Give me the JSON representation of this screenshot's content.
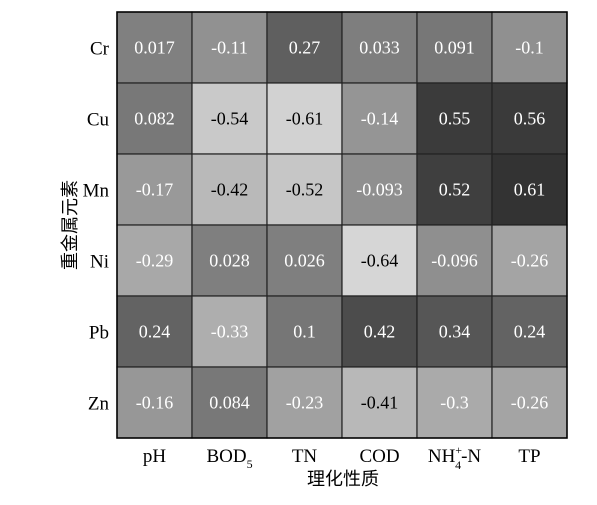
{
  "chart_data": {
    "type": "heatmap",
    "xlabel": "理化性质",
    "ylabel": "重金属元素",
    "x_categories": [
      {
        "main": "pH",
        "sub": "",
        "sup": "",
        "tail": ""
      },
      {
        "main": "BOD",
        "sub": "5",
        "sup": "",
        "tail": ""
      },
      {
        "main": "TN",
        "sub": "",
        "sup": "",
        "tail": ""
      },
      {
        "main": "COD",
        "sub": "",
        "sup": "",
        "tail": ""
      },
      {
        "main": "NH",
        "sub": "4",
        "sup": "+",
        "tail": "-N"
      },
      {
        "main": "TP",
        "sub": "",
        "sup": "",
        "tail": ""
      }
    ],
    "y_categories": [
      "Cr",
      "Cu",
      "Mn",
      "Ni",
      "Pb",
      "Zn"
    ],
    "values": [
      [
        0.017,
        -0.11,
        0.27,
        0.033,
        0.091,
        -0.1
      ],
      [
        0.082,
        -0.54,
        -0.61,
        -0.14,
        0.55,
        0.56
      ],
      [
        -0.17,
        -0.42,
        -0.52,
        -0.093,
        0.52,
        0.61
      ],
      [
        -0.29,
        0.028,
        0.026,
        -0.64,
        -0.096,
        -0.26
      ],
      [
        0.24,
        -0.33,
        0.1,
        0.42,
        0.34,
        0.24
      ],
      [
        -0.16,
        0.084,
        -0.23,
        -0.41,
        -0.3,
        -0.26
      ]
    ],
    "color_scale": {
      "min": -0.64,
      "max": 0.61,
      "low_color": "#d6d6d6",
      "high_color": "#333333"
    },
    "grid": true,
    "legend": "none"
  }
}
